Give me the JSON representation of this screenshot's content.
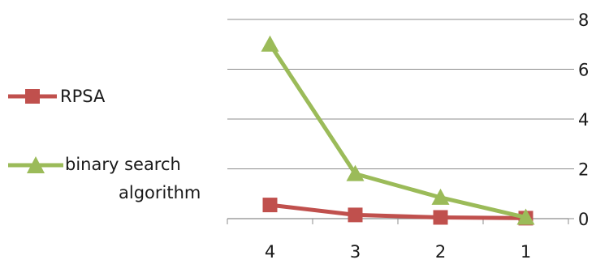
{
  "chart_data": {
    "type": "line",
    "categories": [
      "4",
      "3",
      "2",
      "1"
    ],
    "series": [
      {
        "name": "RPSA",
        "values": [
          0.55,
          0.15,
          0.05,
          0.02
        ],
        "color": "#c0504d",
        "marker": "square"
      },
      {
        "name_lines": [
          "binary search",
          "algorithm"
        ],
        "name": "binary search algorithm",
        "values": [
          7.0,
          1.8,
          0.85,
          0.05
        ],
        "color": "#9bbb59",
        "marker": "triangle"
      }
    ],
    "y_ticks": [
      "0",
      "2",
      "4",
      "6",
      "8"
    ],
    "ylim": [
      0,
      8
    ],
    "y_axis_side": "right",
    "grid": "horizontal",
    "legend": "left"
  }
}
